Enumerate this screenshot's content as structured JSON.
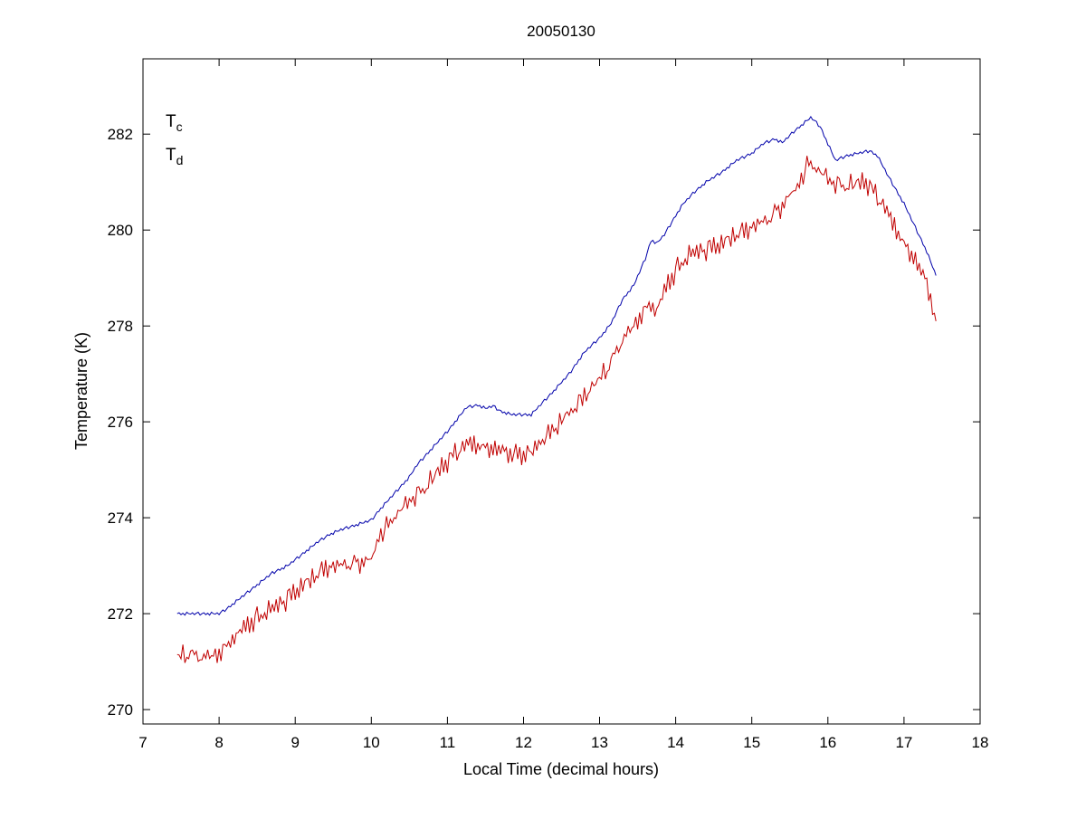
{
  "chart_data": {
    "type": "line",
    "title": "20050130",
    "xlabel": "Local Time (decimal hours)",
    "ylabel": "Temperature (K)",
    "xlim": [
      7,
      18
    ],
    "ylim": [
      269.7,
      283.57
    ],
    "x_ticks": [
      7,
      8,
      9,
      10,
      11,
      12,
      13,
      14,
      15,
      16,
      17,
      18
    ],
    "y_ticks": [
      270,
      272,
      274,
      276,
      278,
      280,
      282
    ],
    "grid": false,
    "legend_position": "top-left-inside",
    "sample_step": 0.025,
    "legend": [
      {
        "main": "T",
        "sub": "c"
      },
      {
        "main": "T",
        "sub": "d"
      }
    ],
    "series": [
      {
        "name": "Tc",
        "color": "#0000aa",
        "keypoints": [
          [
            7.45,
            272.0
          ],
          [
            8.0,
            272.0
          ],
          [
            8.1,
            272.1
          ],
          [
            8.3,
            272.35
          ],
          [
            8.5,
            272.6
          ],
          [
            8.7,
            272.85
          ],
          [
            8.9,
            273.0
          ],
          [
            9.1,
            273.25
          ],
          [
            9.3,
            273.5
          ],
          [
            9.45,
            273.65
          ],
          [
            9.6,
            273.75
          ],
          [
            9.8,
            273.85
          ],
          [
            10.0,
            273.95
          ],
          [
            10.1,
            274.15
          ],
          [
            10.3,
            274.5
          ],
          [
            10.5,
            274.85
          ],
          [
            10.6,
            275.1
          ],
          [
            10.8,
            275.45
          ],
          [
            11.0,
            275.8
          ],
          [
            11.1,
            276.0
          ],
          [
            11.25,
            276.3
          ],
          [
            11.4,
            276.35
          ],
          [
            11.5,
            276.28
          ],
          [
            11.6,
            276.33
          ],
          [
            11.7,
            276.22
          ],
          [
            11.85,
            276.15
          ],
          [
            12.1,
            276.15
          ],
          [
            12.25,
            276.4
          ],
          [
            12.4,
            276.65
          ],
          [
            12.6,
            277.0
          ],
          [
            12.8,
            277.45
          ],
          [
            13.0,
            277.75
          ],
          [
            13.15,
            278.05
          ],
          [
            13.3,
            278.55
          ],
          [
            13.45,
            278.85
          ],
          [
            13.6,
            279.4
          ],
          [
            13.68,
            279.8
          ],
          [
            13.75,
            279.72
          ],
          [
            13.85,
            279.9
          ],
          [
            14.0,
            280.3
          ],
          [
            14.1,
            280.55
          ],
          [
            14.25,
            280.8
          ],
          [
            14.4,
            281.0
          ],
          [
            14.6,
            281.2
          ],
          [
            14.8,
            281.45
          ],
          [
            15.0,
            281.6
          ],
          [
            15.15,
            281.8
          ],
          [
            15.3,
            281.9
          ],
          [
            15.4,
            281.82
          ],
          [
            15.55,
            282.05
          ],
          [
            15.7,
            282.25
          ],
          [
            15.78,
            282.35
          ],
          [
            15.9,
            282.15
          ],
          [
            16.0,
            281.8
          ],
          [
            16.1,
            281.45
          ],
          [
            16.25,
            281.55
          ],
          [
            16.4,
            281.6
          ],
          [
            16.55,
            281.65
          ],
          [
            16.65,
            281.55
          ],
          [
            16.8,
            281.1
          ],
          [
            17.0,
            280.55
          ],
          [
            17.15,
            280.05
          ],
          [
            17.3,
            279.55
          ],
          [
            17.42,
            279.05
          ]
        ],
        "noise_a": [
          0.0,
          0.02,
          -0.02,
          0.01,
          -0.03,
          0.03,
          0.0,
          -0.01,
          0.02,
          -0.02,
          0.01,
          0.03,
          -0.03
        ],
        "noise_b": [
          0.0
        ]
      },
      {
        "name": "Td",
        "color": "#c00000",
        "keypoints": [
          [
            7.45,
            271.1
          ],
          [
            7.6,
            271.15
          ],
          [
            7.8,
            271.08
          ],
          [
            8.0,
            271.15
          ],
          [
            8.2,
            271.5
          ],
          [
            8.4,
            271.8
          ],
          [
            8.6,
            272.0
          ],
          [
            8.8,
            272.2
          ],
          [
            9.0,
            272.45
          ],
          [
            9.2,
            272.7
          ],
          [
            9.4,
            272.95
          ],
          [
            9.6,
            273.0
          ],
          [
            9.8,
            273.05
          ],
          [
            10.0,
            273.1
          ],
          [
            10.1,
            273.6
          ],
          [
            10.3,
            274.0
          ],
          [
            10.5,
            274.35
          ],
          [
            10.7,
            274.6
          ],
          [
            10.9,
            275.0
          ],
          [
            11.1,
            275.35
          ],
          [
            11.3,
            275.55
          ],
          [
            11.5,
            275.45
          ],
          [
            11.7,
            275.4
          ],
          [
            11.9,
            275.3
          ],
          [
            12.1,
            275.35
          ],
          [
            12.3,
            275.7
          ],
          [
            12.5,
            276.0
          ],
          [
            12.7,
            276.35
          ],
          [
            12.9,
            276.7
          ],
          [
            13.1,
            277.1
          ],
          [
            13.3,
            277.7
          ],
          [
            13.5,
            278.1
          ],
          [
            13.65,
            278.45
          ],
          [
            13.75,
            278.3
          ],
          [
            13.9,
            278.9
          ],
          [
            14.05,
            279.25
          ],
          [
            14.2,
            279.5
          ],
          [
            14.4,
            279.6
          ],
          [
            14.6,
            279.7
          ],
          [
            14.8,
            279.9
          ],
          [
            15.0,
            280.05
          ],
          [
            15.2,
            280.2
          ],
          [
            15.4,
            280.5
          ],
          [
            15.6,
            280.9
          ],
          [
            15.75,
            281.4
          ],
          [
            15.9,
            281.2
          ],
          [
            16.05,
            281.0
          ],
          [
            16.2,
            280.9
          ],
          [
            16.35,
            280.95
          ],
          [
            16.5,
            281.0
          ],
          [
            16.65,
            280.7
          ],
          [
            16.8,
            280.3
          ],
          [
            17.0,
            279.7
          ],
          [
            17.15,
            279.35
          ],
          [
            17.3,
            278.9
          ],
          [
            17.42,
            278.1
          ]
        ],
        "noise_a": [
          0.0,
          0.1,
          -0.08,
          0.14,
          -0.12,
          0.04,
          -0.16,
          0.08,
          0.16,
          -0.06,
          0.12,
          -0.14,
          0.02,
          -0.1,
          0.15,
          -0.04,
          0.06
        ],
        "noise_b": [
          0.05,
          -0.07,
          0.02,
          0.09,
          -0.04,
          -0.09,
          0.07,
          0.0,
          -0.05,
          0.08,
          -0.02,
          0.04,
          -0.08
        ]
      }
    ]
  }
}
